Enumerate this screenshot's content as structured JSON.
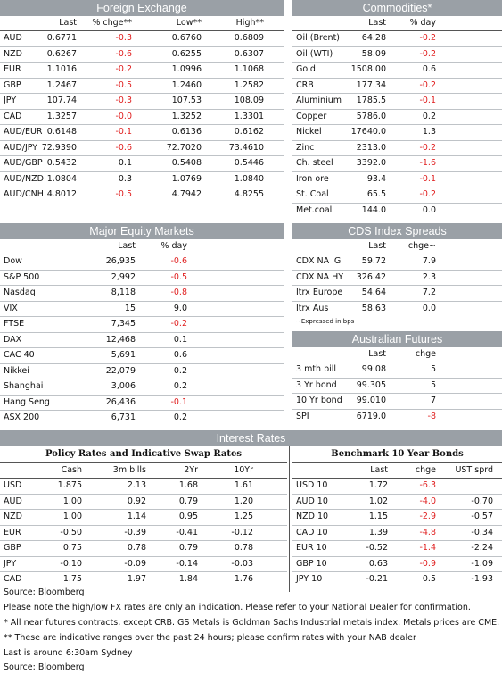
{
  "fx": {
    "title": "Foreign Exchange",
    "headers": [
      "Last",
      "% chge**",
      "Low**",
      "High**"
    ],
    "rows": [
      [
        "AUD",
        "0.6771",
        "-0.3",
        "0.6760",
        "0.6809"
      ],
      [
        "NZD",
        "0.6267",
        "-0.6",
        "0.6255",
        "0.6307"
      ],
      [
        "EUR",
        "1.1016",
        "-0.2",
        "1.0996",
        "1.1068"
      ],
      [
        "GBP",
        "1.2467",
        "-0.5",
        "1.2460",
        "1.2582"
      ],
      [
        "JPY",
        "107.74",
        "-0.3",
        "107.53",
        "108.09"
      ],
      [
        "CAD",
        "1.3257",
        "-0.0",
        "1.3252",
        "1.3301"
      ],
      [
        "AUD/EUR",
        "0.6148",
        "-0.1",
        "0.6136",
        "0.6162"
      ],
      [
        "AUD/JPY",
        "72.9390",
        "-0.6",
        "72.7020",
        "73.4610"
      ],
      [
        "AUD/GBP",
        "0.5432",
        "0.1",
        "0.5408",
        "0.5446"
      ],
      [
        "AUD/NZD",
        "1.0804",
        "0.3",
        "1.0769",
        "1.0840"
      ],
      [
        "AUD/CNH",
        "4.8012",
        "-0.5",
        "4.7942",
        "4.8255"
      ]
    ]
  },
  "commodities": {
    "title": "Commodities*",
    "headers": [
      "Last",
      "% day"
    ],
    "rows": [
      [
        "Oil (Brent)",
        "64.28",
        "-0.2"
      ],
      [
        "Oil (WTI)",
        "58.09",
        "-0.2"
      ],
      [
        "Gold",
        "1508.00",
        "0.6"
      ],
      [
        "CRB",
        "177.34",
        "-0.2"
      ],
      [
        "Aluminium",
        "1785.5",
        "-0.1"
      ],
      [
        "Copper",
        "5786.0",
        "0.2"
      ],
      [
        "Nickel",
        "17640.0",
        "1.3"
      ],
      [
        "Zinc",
        "2313.0",
        "-0.2"
      ],
      [
        "Ch. steel",
        "3392.0",
        "-1.6"
      ],
      [
        "Iron ore",
        "93.4",
        "-0.1"
      ],
      [
        "St. Coal",
        "65.5",
        "-0.2"
      ],
      [
        "Met.coal",
        "144.0",
        "0.0"
      ]
    ]
  },
  "equity": {
    "title": "Major Equity Markets",
    "headers": [
      "Last",
      "% day"
    ],
    "rows": [
      [
        "Dow",
        "26,935",
        "-0.6"
      ],
      [
        "S&P 500",
        "2,992",
        "-0.5"
      ],
      [
        "Nasdaq",
        "8,118",
        "-0.8"
      ],
      [
        "VIX",
        "15",
        "9.0"
      ],
      [
        "FTSE",
        "7,345",
        "-0.2"
      ],
      [
        "DAX",
        "12,468",
        "0.1"
      ],
      [
        "CAC 40",
        "5,691",
        "0.6"
      ],
      [
        "Nikkei",
        "22,079",
        "0.2"
      ],
      [
        "Shanghai",
        "3,006",
        "0.2"
      ],
      [
        "Hang Seng",
        "26,436",
        "-0.1"
      ],
      [
        "ASX 200",
        "6,731",
        "0.2"
      ]
    ]
  },
  "cds": {
    "title": "CDS Index Spreads",
    "headers": [
      "Last",
      "chge~"
    ],
    "rows": [
      [
        "CDX NA IG",
        "59.72",
        "7.9"
      ],
      [
        "CDX NA HY",
        "326.42",
        "2.3"
      ],
      [
        "Itrx Europe",
        "54.64",
        "7.2"
      ],
      [
        "Itrx Aus",
        "58.63",
        "0.0"
      ]
    ],
    "note": "~Expressed in bps"
  },
  "futures": {
    "title": "Australian Futures",
    "headers": [
      "Last",
      "chge"
    ],
    "rows": [
      [
        "3 mth bill",
        "99.08",
        "5"
      ],
      [
        "3 Yr bond",
        "99.305",
        "5"
      ],
      [
        "10 Yr bond",
        "99.010",
        "7"
      ],
      [
        "SPI",
        "6719.0",
        "-8"
      ]
    ]
  },
  "interest": {
    "title": "Interest Rates",
    "policy": {
      "title": "Policy Rates and Indicative Swap Rates",
      "headers": [
        "Cash",
        "3m bills",
        "2Yr",
        "10Yr"
      ],
      "rows": [
        [
          "USD",
          "1.875",
          "2.13",
          "1.68",
          "1.61"
        ],
        [
          "AUD",
          "1.00",
          "0.92",
          "0.79",
          "1.20"
        ],
        [
          "NZD",
          "1.00",
          "1.14",
          "0.95",
          "1.25"
        ],
        [
          "EUR",
          "-0.50",
          "-0.39",
          "-0.41",
          "-0.12"
        ],
        [
          "GBP",
          "0.75",
          "0.78",
          "0.79",
          "0.78"
        ],
        [
          "JPY",
          "-0.10",
          "-0.09",
          "-0.14",
          "-0.03"
        ],
        [
          "CAD",
          "1.75",
          "1.97",
          "1.84",
          "1.76"
        ]
      ]
    },
    "bonds": {
      "title": "Benchmark 10 Year Bonds",
      "headers": [
        "Last",
        "chge",
        "UST sprd"
      ],
      "rows": [
        [
          "USD 10",
          "1.72",
          "-6.3",
          ""
        ],
        [
          "AUD 10",
          "1.02",
          "-4.0",
          "-0.70"
        ],
        [
          "NZD 10",
          "1.15",
          "-2.9",
          "-0.57"
        ],
        [
          "CAD 10",
          "1.39",
          "-4.8",
          "-0.34"
        ],
        [
          "EUR 10",
          "-0.52",
          "-1.4",
          "-2.24"
        ],
        [
          "GBP 10",
          "0.63",
          "-0.9",
          "-1.09"
        ],
        [
          "JPY 10",
          "-0.21",
          "0.5",
          "-1.93"
        ]
      ]
    }
  },
  "footnotes": [
    "Source: Bloomberg",
    "Please note the high/low FX rates are only an indication. Please refer to your National Dealer for confirmation.",
    "* All near futures contracts, except CRB. GS Metals is Goldman Sachs Industrial metals index. Metals prices are CME.",
    "** These are indicative ranges over the past 24 hours; please confirm rates with your NAB dealer",
    "Last is around 6:30am Sydney",
    "Source: Bloomberg"
  ],
  "colors": {
    "header_bar": "#9aa0a6",
    "negative": "#e02020"
  }
}
